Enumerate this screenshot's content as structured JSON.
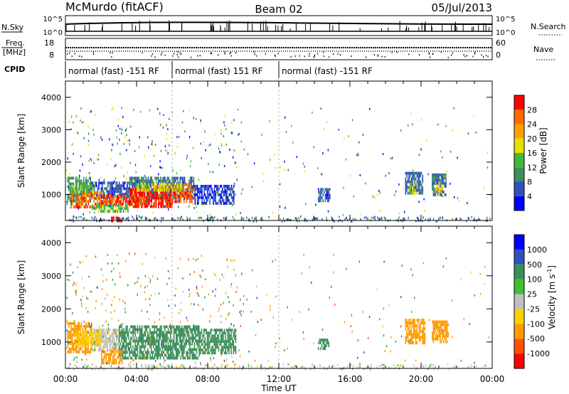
{
  "header": {
    "station": "McMurdo (fitACF)",
    "beam": "Beam 02",
    "date": "05/Jul/2013"
  },
  "summary_panels": {
    "nsky_label": "N.Sky",
    "nsearch_label": "N.Search",
    "nsky_ticks": [
      "10^5",
      "10^0"
    ],
    "nsearch_ticks": [
      "10^5",
      "10^0"
    ],
    "freq_label_line1": "Freq.",
    "freq_label_line2": "[MHz]",
    "freq_ticks": [
      "18",
      "8"
    ],
    "nave_label": "Nave",
    "nave_ticks": [
      "60",
      "0"
    ],
    "cpid_label": "CPID",
    "cpid_segments": [
      {
        "label": "normal (fast) -151 RF",
        "start_hour": 0,
        "end_hour": 6
      },
      {
        "label": "normal (fast) 151 RF",
        "start_hour": 6,
        "end_hour": 12
      },
      {
        "label": "normal (fast) -151 RF",
        "start_hour": 12,
        "end_hour": 24
      }
    ]
  },
  "colors": {
    "power": [
      "#0000ff",
      "#3050c0",
      "#3d8f5a",
      "#44b838",
      "#e8e000",
      "#ffa000",
      "#ff6a00",
      "#ff0000"
    ],
    "velocity": [
      "#ff0000",
      "#ff5000",
      "#ff9a00",
      "#ffd000",
      "#c0c0c0",
      "#40c030",
      "#3a8f5c",
      "#3050c0",
      "#0000ff"
    ]
  },
  "chart_data": [
    {
      "type": "heatmap",
      "parameter": "Power",
      "ylabel": "Slant Range [km]",
      "xlim_hours": [
        0,
        24
      ],
      "ylim": [
        200,
        4500
      ],
      "y_ticks": [
        1000,
        2000,
        3000,
        4000
      ],
      "colorbar": {
        "label": "Power [dB]",
        "tick_labels": [
          "4",
          "8",
          "12",
          "16",
          "20",
          "24",
          "28"
        ],
        "range": [
          0,
          32
        ]
      },
      "regions": [
        {
          "t0": 0.1,
          "t1": 1.4,
          "r0": 800,
          "r1": 1550,
          "value": 10
        },
        {
          "t0": 1.4,
          "t1": 3.6,
          "r0": 900,
          "r1": 1400,
          "value": 6
        },
        {
          "t0": 3.6,
          "t1": 7.2,
          "r0": 850,
          "r1": 1550,
          "value": 8
        },
        {
          "t0": 7.2,
          "t1": 9.5,
          "r0": 700,
          "r1": 1300,
          "value": 5
        },
        {
          "t0": 0.3,
          "t1": 2.0,
          "r0": 650,
          "r1": 1100,
          "value": 26
        },
        {
          "t0": 2.0,
          "t1": 4.0,
          "r0": 700,
          "r1": 1000,
          "value": 28
        },
        {
          "t0": 3.6,
          "t1": 6.0,
          "r0": 650,
          "r1": 1200,
          "value": 29
        },
        {
          "t0": 6.0,
          "t1": 7.1,
          "r0": 750,
          "r1": 1350,
          "value": 27
        },
        {
          "t0": 0.2,
          "t1": 1.6,
          "r0": 1100,
          "r1": 1300,
          "value": 14
        },
        {
          "t0": 4.0,
          "t1": 6.5,
          "r0": 1100,
          "r1": 1350,
          "value": 18
        },
        {
          "t0": 1.5,
          "t1": 3.5,
          "r0": 450,
          "r1": 700,
          "value": 14
        },
        {
          "t0": 2.5,
          "t1": 3.2,
          "r0": 200,
          "r1": 320,
          "value": 30
        },
        {
          "t0": 14.2,
          "t1": 14.9,
          "r0": 800,
          "r1": 1200,
          "value": 6
        },
        {
          "t0": 19.1,
          "t1": 20.1,
          "r0": 1000,
          "r1": 1700,
          "value": 7
        },
        {
          "t0": 19.3,
          "t1": 19.8,
          "r0": 1050,
          "r1": 1350,
          "value": 16
        },
        {
          "t0": 20.6,
          "t1": 21.4,
          "r0": 1000,
          "r1": 1650,
          "value": 8
        },
        {
          "t0": 20.8,
          "t1": 21.2,
          "r0": 1100,
          "r1": 1400,
          "value": 18
        }
      ]
    },
    {
      "type": "heatmap",
      "parameter": "Velocity",
      "ylabel": "Slant Range [km]",
      "xlabel": "Time UT",
      "x_tick_labels": [
        "00:00",
        "04:00",
        "08:00",
        "12:00",
        "16:00",
        "20:00",
        "00:00"
      ],
      "xlim_hours": [
        0,
        24
      ],
      "ylim": [
        200,
        4500
      ],
      "y_ticks": [
        1000,
        2000,
        3000,
        4000
      ],
      "colorbar": {
        "label": "Velocity [m s",
        "label_superscript": "-1",
        "label_close": "]",
        "tick_labels": [
          "-1000",
          "-500",
          "-100",
          "-25",
          "25",
          "100",
          "500",
          "1000"
        ]
      },
      "regions": [
        {
          "t0": 0.1,
          "t1": 1.5,
          "r0": 700,
          "r1": 1600,
          "value": -250
        },
        {
          "t0": 1.5,
          "t1": 3.0,
          "r0": 750,
          "r1": 1400,
          "value": 0
        },
        {
          "t0": 3.0,
          "t1": 7.5,
          "r0": 500,
          "r1": 1500,
          "value": 200
        },
        {
          "t0": 7.5,
          "t1": 9.6,
          "r0": 700,
          "r1": 1400,
          "value": 250
        },
        {
          "t0": 0.5,
          "t1": 2.0,
          "r0": 900,
          "r1": 1300,
          "value": -60
        },
        {
          "t0": 2.0,
          "t1": 3.2,
          "r0": 400,
          "r1": 750,
          "value": -400
        },
        {
          "t0": 14.2,
          "t1": 14.8,
          "r0": 800,
          "r1": 1100,
          "value": 200
        },
        {
          "t0": 19.1,
          "t1": 20.2,
          "r0": 1000,
          "r1": 1700,
          "value": -300
        },
        {
          "t0": 20.6,
          "t1": 21.5,
          "r0": 1000,
          "r1": 1650,
          "value": -250
        }
      ]
    }
  ]
}
